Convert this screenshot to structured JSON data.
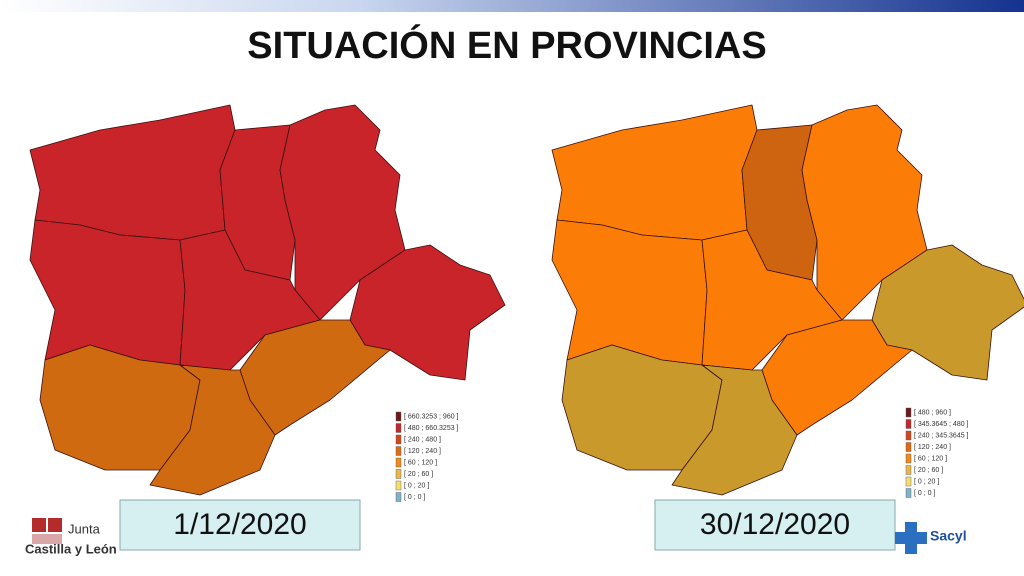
{
  "title": "SITUACIÓN EN PROVINCIAS",
  "maps": [
    {
      "date": "1/12/2020",
      "legend": [
        {
          "label": "[ 660.3253 ; 960 ]",
          "color": "#6b1a1a"
        },
        {
          "label": "[ 480 ; 660.3253 ]",
          "color": "#c0282a"
        },
        {
          "label": "[ 240 ; 480 ]",
          "color": "#d2461c"
        },
        {
          "label": "[ 120 ; 240 ]",
          "color": "#e06a14"
        },
        {
          "label": "[ 60 ; 120 ]",
          "color": "#f08a1a"
        },
        {
          "label": "[ 20 ; 60 ]",
          "color": "#e9b84a"
        },
        {
          "label": "[ 0 ; 20 ]",
          "color": "#f5de6e"
        },
        {
          "label": "[ 0 ; 0 ]",
          "color": "#7fb3c8"
        }
      ]
    },
    {
      "date": "30/12/2020",
      "legend": [
        {
          "label": "[ 480 ; 960 ]",
          "color": "#6b1a1a"
        },
        {
          "label": "[ 345.3645 ; 480 ]",
          "color": "#c0282a"
        },
        {
          "label": "[ 240 ; 345.3645 ]",
          "color": "#d2461c"
        },
        {
          "label": "[ 120 ; 240 ]",
          "color": "#e06a14"
        },
        {
          "label": "[ 60 ; 120 ]",
          "color": "#f08a1a"
        },
        {
          "label": "[ 20 ; 60 ]",
          "color": "#e9b84a"
        },
        {
          "label": "[ 0 ; 20 ]",
          "color": "#f5de6e"
        },
        {
          "label": "[ 0 ; 0 ]",
          "color": "#7fb3c8"
        }
      ]
    }
  ],
  "logos": {
    "junta_line1": "Junta",
    "junta_line2": "Castilla y León",
    "sacyl": "Sacyl"
  }
}
